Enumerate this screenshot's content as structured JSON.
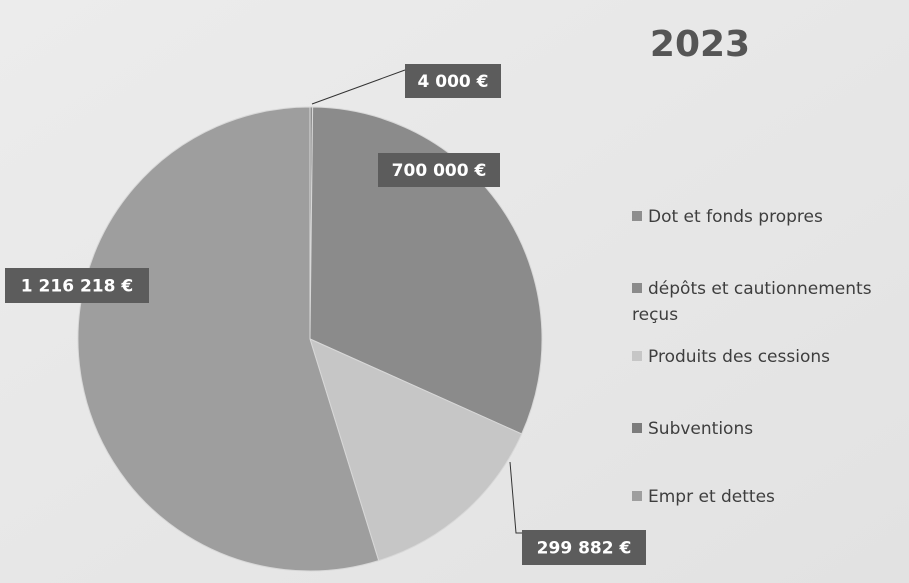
{
  "chart_data": {
    "type": "pie",
    "title": "2023",
    "categories": [
      "Dot et fonds propres",
      "dépôts et cautionnements reçus",
      "Produits des cessions",
      "Subventions",
      "Empr et dettes"
    ],
    "values": [
      4000,
      700000,
      299882,
      null,
      1216218
    ],
    "value_labels": [
      "4 000 €",
      "700 000 €",
      "299 882 €",
      null,
      "1 216 218 €"
    ],
    "colors": [
      "#8e8e8e",
      "#8b8b8b",
      "#c6c6c6",
      "#7c7c7c",
      "#9e9e9e"
    ],
    "legend": "right"
  }
}
